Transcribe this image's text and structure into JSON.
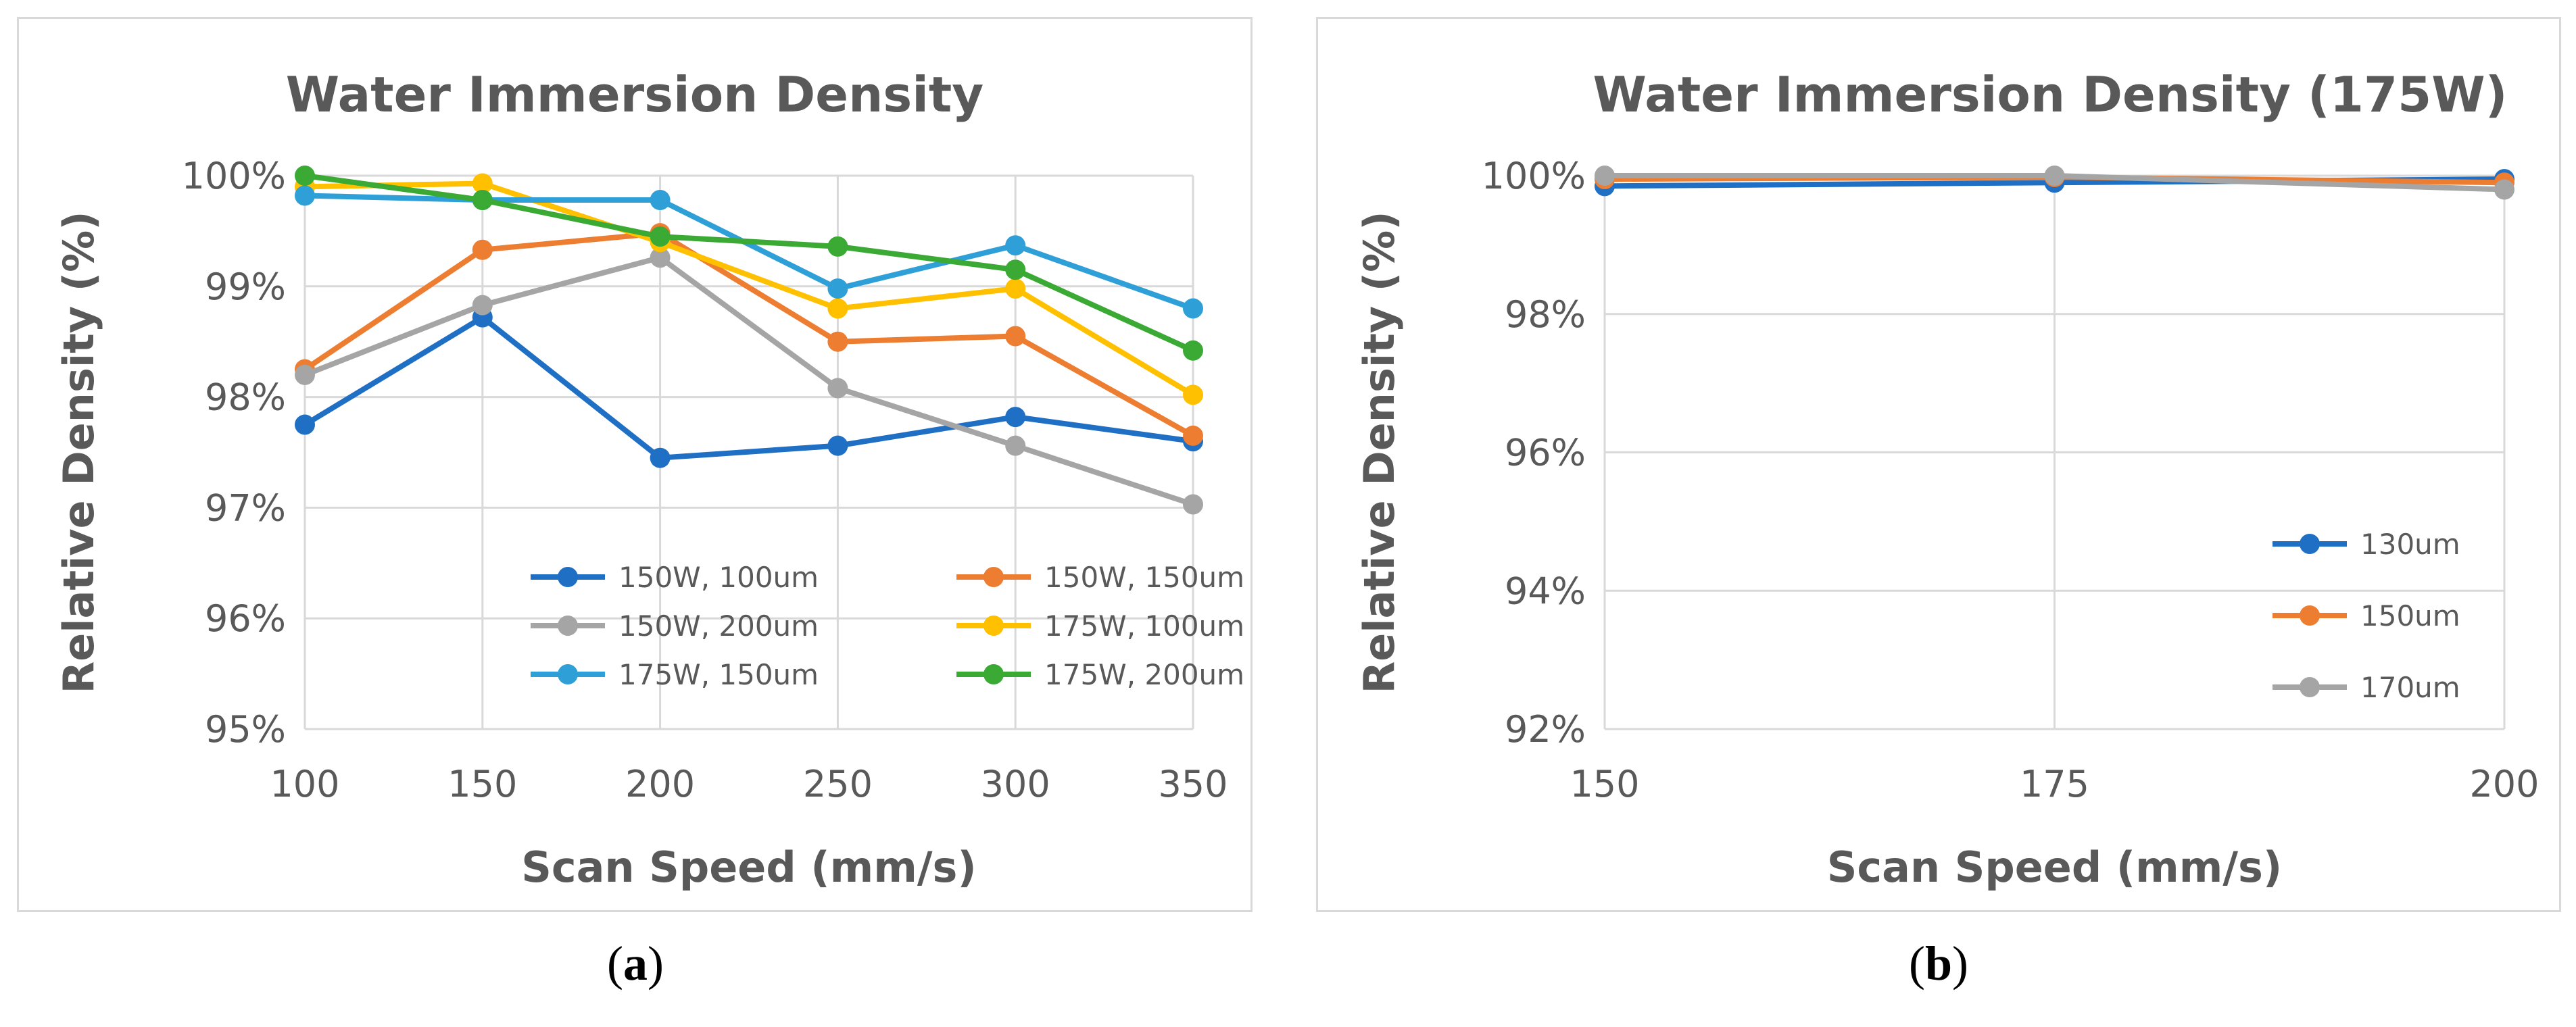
{
  "chart_data": [
    {
      "type": "line",
      "title": "Water Immersion Density",
      "xlabel": "Scan Speed (mm/s)",
      "ylabel": "Relative Density (%)",
      "x": [
        100,
        150,
        200,
        250,
        300,
        350
      ],
      "xticks": [
        "100",
        "150",
        "200",
        "250",
        "300",
        "350"
      ],
      "ylim": [
        95,
        100
      ],
      "yticks": [
        "95%",
        "96%",
        "97%",
        "98%",
        "99%",
        "100%"
      ],
      "grid": true,
      "legend_position": "bottom-right",
      "legend_columns": 2,
      "series": [
        {
          "name": "150W, 100um",
          "color": "#1f6fc5",
          "values": [
            97.75,
            98.72,
            97.45,
            97.56,
            97.82,
            97.6
          ]
        },
        {
          "name": "150W, 150um",
          "color": "#ed7d31",
          "values": [
            98.25,
            99.33,
            99.48,
            98.5,
            98.55,
            97.65
          ]
        },
        {
          "name": "150W, 200um",
          "color": "#a5a5a5",
          "values": [
            98.2,
            98.83,
            99.26,
            98.08,
            97.56,
            97.03
          ]
        },
        {
          "name": "175W, 100um",
          "color": "#ffc000",
          "values": [
            99.9,
            99.93,
            99.4,
            98.8,
            98.98,
            98.02
          ]
        },
        {
          "name": "175W, 150um",
          "color": "#2f9fd8",
          "values": [
            99.82,
            99.78,
            99.78,
            98.98,
            99.37,
            98.8
          ]
        },
        {
          "name": "175W, 200um",
          "color": "#3aaa35",
          "values": [
            100.0,
            99.78,
            99.45,
            99.36,
            99.15,
            98.42
          ]
        }
      ]
    },
    {
      "type": "line",
      "title": "Water Immersion Density (175W)",
      "xlabel": "Scan Speed (mm/s)",
      "ylabel": "Relative Density (%)",
      "x": [
        150,
        175,
        200
      ],
      "xticks": [
        "150",
        "175",
        "200"
      ],
      "ylim": [
        92,
        100
      ],
      "yticks": [
        "92%",
        "94%",
        "96%",
        "98%",
        "100%"
      ],
      "grid": true,
      "legend_position": "right",
      "legend_columns": 1,
      "series": [
        {
          "name": "130um",
          "color": "#1f6fc5",
          "values": [
            99.85,
            99.9,
            99.95
          ]
        },
        {
          "name": "150um",
          "color": "#ed7d31",
          "values": [
            99.95,
            99.98,
            99.9
          ]
        },
        {
          "name": "170um",
          "color": "#a5a5a5",
          "values": [
            100.0,
            100.0,
            99.8
          ]
        }
      ]
    }
  ],
  "captions": {
    "a": {
      "open": "(",
      "letter": "a",
      "close": ")"
    },
    "b": {
      "open": "(",
      "letter": "b",
      "close": ")"
    }
  }
}
